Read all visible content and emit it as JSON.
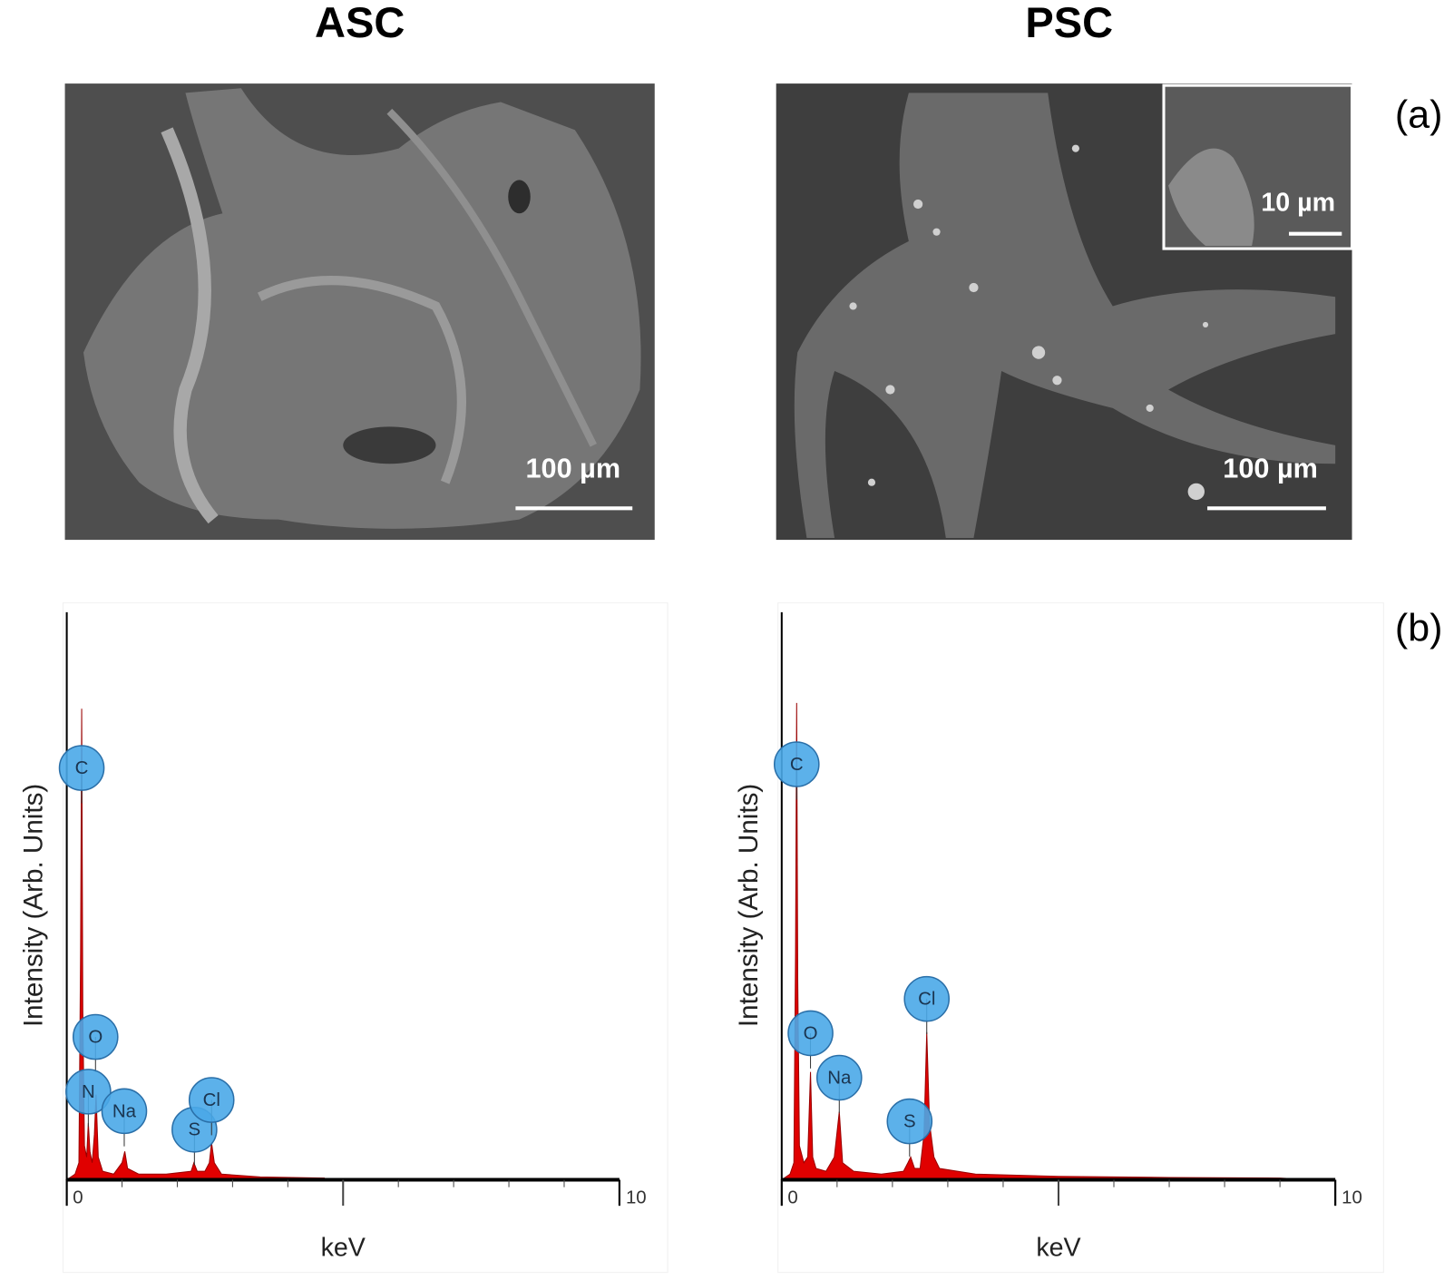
{
  "headers": [
    "ASC",
    "PSC"
  ],
  "panel_labels": [
    "(a)",
    "(b)"
  ],
  "sem_images": [
    {
      "scale_bar": "100 µm"
    },
    {
      "scale_bar": "100 µm",
      "inset_scale_bar": "10 µm"
    }
  ],
  "chart_data": [
    {
      "type": "area",
      "y_label": "Intensity (Arb. Units)",
      "x_label": "keV",
      "color": "#e00000",
      "x": [
        0,
        0.15,
        0.22,
        0.25,
        0.27,
        0.29,
        0.32,
        0.36,
        0.39,
        0.42,
        0.46,
        0.5,
        0.53,
        0.57,
        0.65,
        0.85,
        1.0,
        1.05,
        1.1,
        1.3,
        1.8,
        2.25,
        2.3,
        2.36,
        2.5,
        2.58,
        2.62,
        2.67,
        2.8,
        3.5,
        4.66
      ],
      "values": [
        0,
        1,
        3,
        40,
        83,
        30,
        6,
        4,
        10,
        5,
        3,
        8,
        15,
        4,
        1.5,
        1,
        3,
        5,
        2,
        1,
        1,
        1.5,
        3,
        1.5,
        1.5,
        3,
        6.5,
        3,
        1,
        0.5,
        0.3
      ],
      "xlim": [
        0,
        10
      ],
      "xticks": [
        0,
        10
      ],
      "ylim": [
        0,
        100
      ],
      "annotations": [
        {
          "label": "C",
          "x": 0.27
        },
        {
          "label": "O",
          "x": 0.52
        },
        {
          "label": "N",
          "x": 0.39
        },
        {
          "label": "Na",
          "x": 1.04
        },
        {
          "label": "S",
          "x": 2.31
        },
        {
          "label": "Cl",
          "x": 2.62
        }
      ]
    },
    {
      "type": "area",
      "y_label": "Intensity (Arb. Units)",
      "x_label": "keV",
      "color": "#e00000",
      "x": [
        0,
        0.15,
        0.22,
        0.25,
        0.27,
        0.29,
        0.32,
        0.4,
        0.47,
        0.52,
        0.56,
        0.62,
        0.8,
        0.95,
        1.04,
        1.1,
        1.3,
        1.8,
        2.2,
        2.28,
        2.33,
        2.4,
        2.5,
        2.57,
        2.62,
        2.67,
        2.75,
        2.85,
        3.5,
        5,
        7,
        9,
        9.6
      ],
      "values": [
        0,
        1,
        3,
        40,
        84,
        35,
        6,
        3,
        4,
        19,
        4,
        2,
        1.5,
        4,
        12,
        3,
        1.5,
        1,
        1.5,
        3,
        4,
        2,
        2,
        8,
        26,
        10,
        4,
        2,
        1,
        0.6,
        0.4,
        0.3,
        0
      ],
      "xlim": [
        0,
        10
      ],
      "xticks": [
        0,
        10
      ],
      "ylim": [
        0,
        100
      ],
      "annotations": [
        {
          "label": "C",
          "x": 0.27
        },
        {
          "label": "O",
          "x": 0.52
        },
        {
          "label": "Na",
          "x": 1.04
        },
        {
          "label": "S",
          "x": 2.31
        },
        {
          "label": "Cl",
          "x": 2.62
        }
      ]
    }
  ]
}
